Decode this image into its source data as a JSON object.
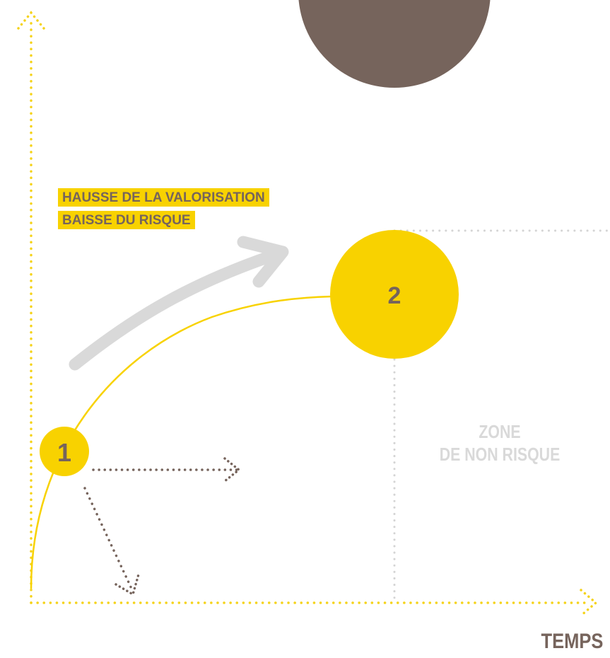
{
  "annotation": {
    "line1": "HAUSSE DE LA VALORISATION",
    "line2": "BAISSE DU RISQUE"
  },
  "points": {
    "p1": "1",
    "p2": "2"
  },
  "zone": {
    "line1": "ZONE",
    "line2": "DE NON RISQUE"
  },
  "axes": {
    "x_label": "TEMPS"
  },
  "colors": {
    "yellow": "#f8d200",
    "brown": "#76645c",
    "light_gray": "#d9d9d9",
    "dots_yellow": "#f5d31a"
  }
}
